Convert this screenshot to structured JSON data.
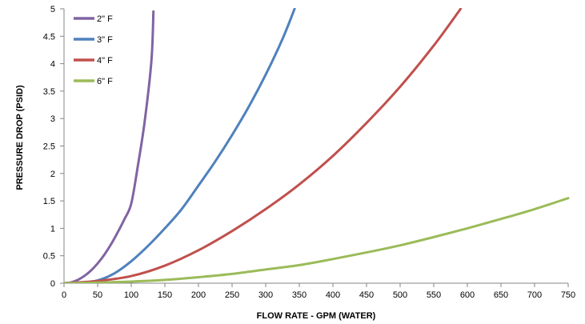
{
  "chart_data": {
    "type": "line",
    "xlabel": "FLOW RATE - GPM (WATER)",
    "ylabel": "PRESSURE DROP (PSID)",
    "xlim": [
      0,
      750
    ],
    "ylim": [
      0,
      5
    ],
    "xticks": [
      "0",
      "50",
      "100",
      "150",
      "200",
      "250",
      "300",
      "350",
      "400",
      "450",
      "500",
      "550",
      "600",
      "650",
      "700",
      "750"
    ],
    "yticks": [
      "0",
      "0.5",
      "1",
      "1.5",
      "2",
      "2.5",
      "3",
      "3.5",
      "4",
      "4.5",
      "5"
    ],
    "grid": false,
    "legend": "top-left",
    "series": [
      {
        "name": "2\" F",
        "color": "#8064A2",
        "x": [
          0,
          10,
          20,
          30,
          40,
          50,
          60,
          70,
          80,
          90,
          100,
          110,
          120,
          130,
          133
        ],
        "y": [
          0,
          0.014,
          0.057,
          0.13,
          0.23,
          0.36,
          0.52,
          0.71,
          0.93,
          1.17,
          1.45,
          2.15,
          2.95,
          4.05,
          4.95
        ]
      },
      {
        "name": "3\" F",
        "color": "#4F81BD",
        "x": [
          0,
          25,
          50,
          75,
          100,
          125,
          150,
          175,
          200,
          225,
          250,
          275,
          300,
          325,
          343
        ],
        "y": [
          0,
          0.01,
          0.05,
          0.18,
          0.4,
          0.68,
          1.0,
          1.35,
          1.78,
          2.22,
          2.7,
          3.22,
          3.8,
          4.45,
          5.0
        ]
      },
      {
        "name": "4\" F",
        "color": "#C0504D",
        "x": [
          0,
          50,
          100,
          150,
          200,
          250,
          300,
          350,
          400,
          450,
          500,
          550,
          590
        ],
        "y": [
          0,
          0.04,
          0.13,
          0.32,
          0.6,
          0.95,
          1.35,
          1.8,
          2.32,
          2.92,
          3.58,
          4.33,
          5.0
        ]
      },
      {
        "name": "6\" F",
        "color": "#9BBB59",
        "x": [
          0,
          50,
          100,
          150,
          200,
          250,
          300,
          350,
          400,
          450,
          500,
          550,
          600,
          650,
          700,
          750
        ],
        "y": [
          0,
          0.01,
          0.03,
          0.06,
          0.11,
          0.17,
          0.25,
          0.33,
          0.44,
          0.56,
          0.69,
          0.84,
          1.0,
          1.17,
          1.35,
          1.55
        ]
      }
    ]
  }
}
